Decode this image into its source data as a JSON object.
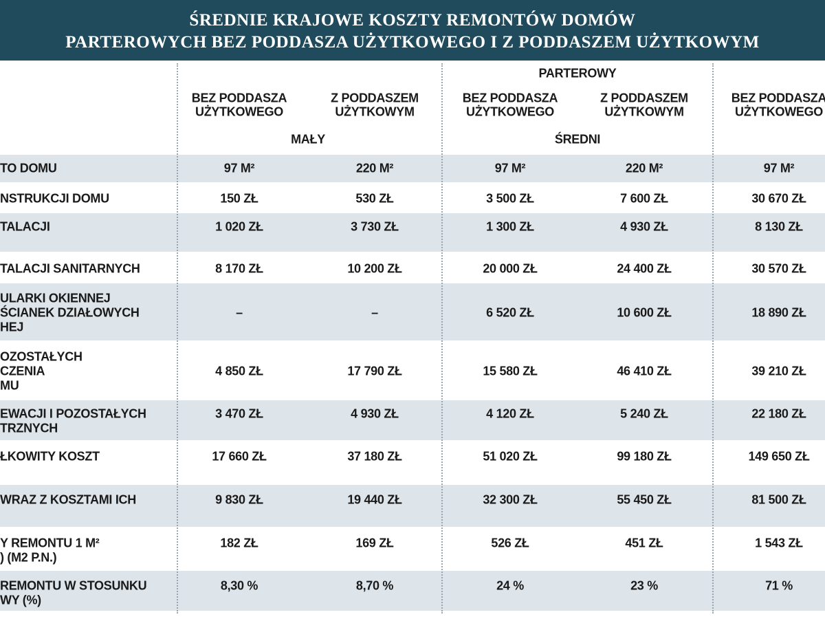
{
  "header": {
    "title": [
      "ŚREDNIE KRAJOWE KOSZTY REMONTÓW DOMÓW",
      "PARTEROWYCH BEZ PODDASZA UŻYTKOWEGO I Z PODDASZEM UŻYTKOWYM"
    ]
  },
  "table": {
    "group": "PARTEROWY",
    "columns": [
      [
        "BEZ PODDASZA",
        "UŻYTKOWEGO"
      ],
      [
        "Z PODDASZEM",
        "UŻYTKOWYM"
      ],
      [
        "BEZ PODDASZA",
        "UŻYTKOWEGO"
      ],
      [
        "Z PODDASZEM",
        "UŻYTKOWYM"
      ],
      [
        "BEZ PODDASZA",
        "UŻYTKOWEGO"
      ]
    ],
    "sizes": [
      "MAŁY",
      "ŚREDNI"
    ],
    "rows": [
      {
        "label": [
          "TO DOMU"
        ],
        "cells": [
          "97 M²",
          "220 M²",
          "97 M²",
          "220 M²",
          "97 M²"
        ]
      },
      {
        "label": [
          "NSTRUKCJI DOMU"
        ],
        "cells": [
          "150 ZŁ",
          "530 ZŁ",
          "3 500 ZŁ",
          "7 600 ZŁ",
          "30 670 ZŁ"
        ]
      },
      {
        "label": [
          "TALACJI"
        ],
        "cells": [
          "1 020 ZŁ",
          "3 730 ZŁ",
          "1 300 ZŁ",
          "4 930 ZŁ",
          "8 130 ZŁ"
        ]
      },
      {
        "label": [
          "TALACJI SANITARNYCH"
        ],
        "cells": [
          "8 170 ZŁ",
          "10 200 ZŁ",
          "20 000 ZŁ",
          "24 400 ZŁ",
          "30 570 ZŁ"
        ]
      },
      {
        "label": [
          "ULARKI OKIENNEJ",
          "ŚCIANEK DZIAŁOWYCH",
          "HEJ"
        ],
        "cells": [
          "–",
          "–",
          "6 520 ZŁ",
          "10 600 ZŁ",
          "18 890 ZŁ"
        ]
      },
      {
        "label": [
          "OZOSTAŁYCH",
          "CZENIA",
          "MU"
        ],
        "cells": [
          "4 850 ZŁ",
          "17 790 ZŁ",
          "15 580 ZŁ",
          "46 410 ZŁ",
          "39 210 ZŁ"
        ]
      },
      {
        "label": [
          "EWACJI I POZOSTAŁYCH",
          "TRZNYCH"
        ],
        "cells": [
          "3 470 ZŁ",
          "4 930 ZŁ",
          "4 120 ZŁ",
          "5 240 ZŁ",
          "22 180 ZŁ"
        ]
      },
      {
        "label": [
          "ŁKOWITY KOSZT"
        ],
        "cells": [
          "17 660 ZŁ",
          "37 180 ZŁ",
          "51 020 ZŁ",
          "99 180 ZŁ",
          "149 650 ZŁ"
        ]
      },
      {
        "label": [
          "WRAZ Z KOSZTAMI ICH"
        ],
        "cells": [
          "9 830 ZŁ",
          "19 440 ZŁ",
          "32 300 ZŁ",
          "55 450 ZŁ",
          "81 500 ZŁ"
        ]
      },
      {
        "label": [
          "Y REMONTU 1 M²",
          ") (M2 P.N.)"
        ],
        "cells": [
          "182 ZŁ",
          "169 ZŁ",
          "526 ZŁ",
          "451 ZŁ",
          "1 543 ZŁ"
        ]
      },
      {
        "label": [
          "REMONTU W STOSUNKU",
          "WY (%)"
        ],
        "cells": [
          "8,30 %",
          "8,70 %",
          "24 %",
          "23 %",
          "71 %"
        ]
      }
    ]
  }
}
